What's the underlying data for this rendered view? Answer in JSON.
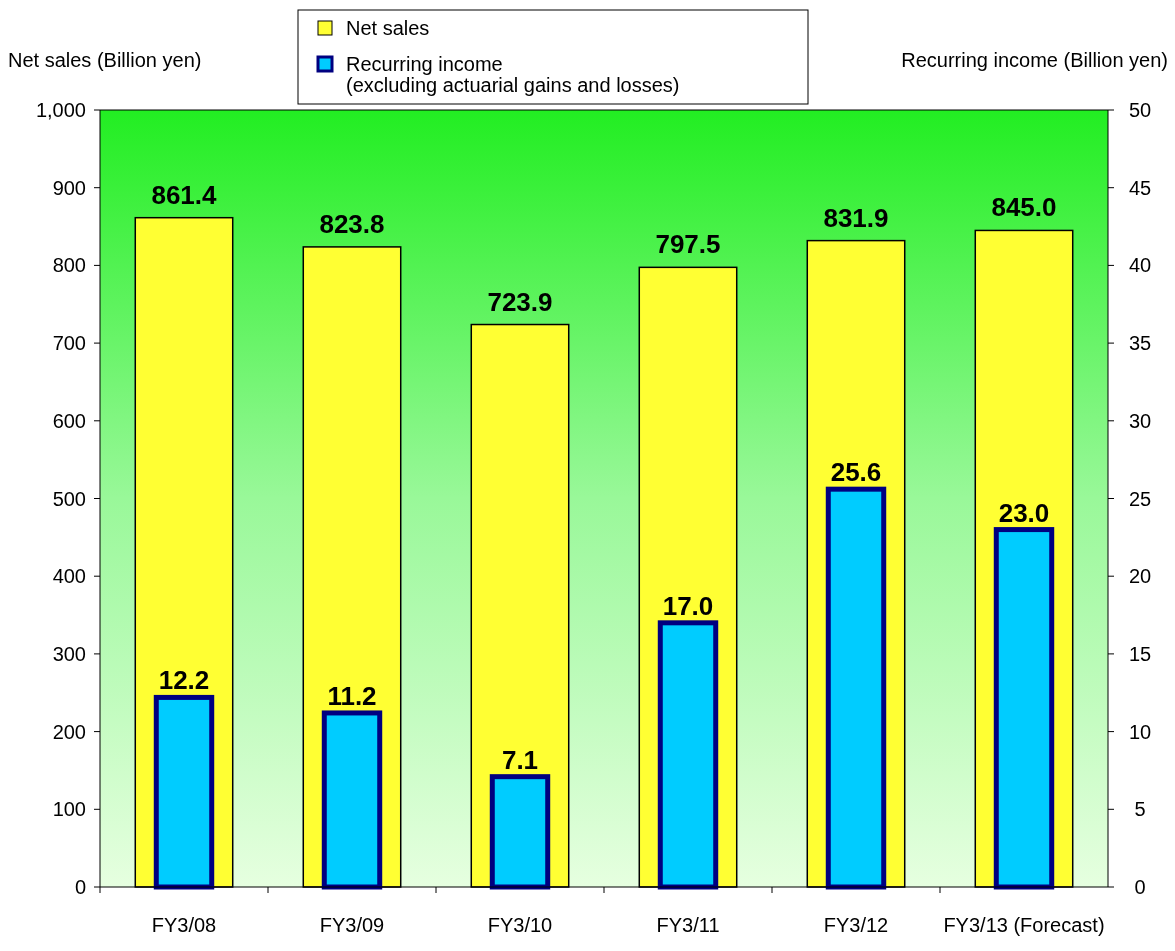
{
  "chart_data": {
    "type": "bar",
    "categories": [
      "FY3/08",
      "FY3/09",
      "FY3/10",
      "FY3/11",
      "FY3/12",
      "FY3/13 (Forecast)"
    ],
    "ylabel": "Net sales (Billion yen)",
    "y2label": "Recurring income (Billion yen)",
    "ylim": [
      0,
      1000
    ],
    "yticks": [
      0,
      100,
      200,
      300,
      400,
      500,
      600,
      700,
      800,
      900,
      {
        "value": 1000,
        "label": "1,000"
      }
    ],
    "y2lim": [
      0,
      50
    ],
    "y2ticks": [
      0,
      5,
      10,
      15,
      20,
      25,
      30,
      35,
      40,
      45,
      50
    ],
    "series": [
      {
        "name": "Net sales",
        "color": "#ffff33",
        "values": [
          861.4,
          823.8,
          723.9,
          797.5,
          831.9,
          845.0
        ],
        "value_labels": [
          "861.4",
          "823.8",
          "723.9",
          "797.5",
          "831.9",
          "845.0"
        ]
      },
      {
        "name": "Recurring income\n(excluding actuarial gains and losses)",
        "axis": "y2",
        "color": "#00ccff",
        "values": [
          12.2,
          11.2,
          7.1,
          17.0,
          25.6,
          23.0
        ],
        "value_labels": [
          "12.2",
          "11.2",
          "7.1",
          "17.0",
          "25.6",
          "23.0"
        ]
      }
    ],
    "legend": "top"
  }
}
